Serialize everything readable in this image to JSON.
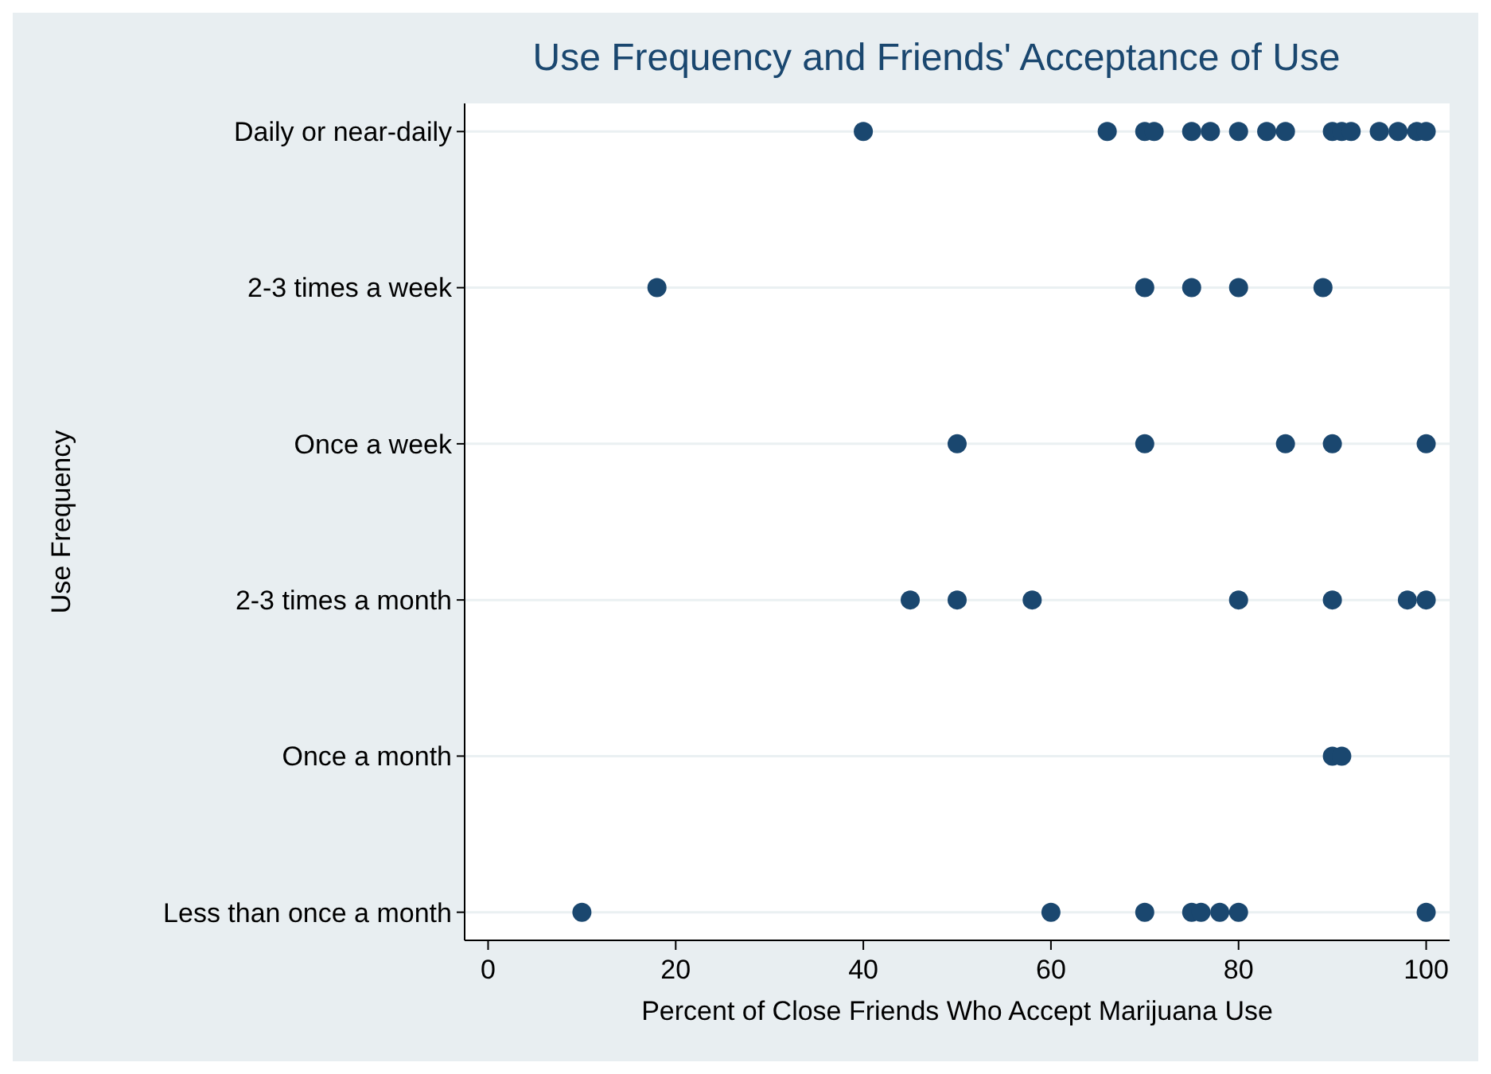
{
  "chart_data": {
    "type": "scatter",
    "title": "Use Frequency and Friends' Acceptance of Use",
    "xlabel": "Percent of Close Friends Who Accept Marijuana Use",
    "ylabel": "Use Frequency",
    "orientation": "horizontal",
    "categories": [
      "Daily or near-daily",
      "2-3 times a week",
      "Once a week",
      "2-3 times a month",
      "Once a month",
      "Less than once a month"
    ],
    "xlim": [
      -2.5,
      102.5
    ],
    "xticks": [
      0,
      20,
      40,
      60,
      80,
      100
    ],
    "grid": "y",
    "marker": "circle",
    "series": [
      {
        "color": "#1a476f",
        "values": [
          40,
          66,
          70,
          71,
          75,
          77,
          80,
          83,
          85,
          90,
          91,
          92,
          95,
          97,
          99,
          100,
          18,
          70,
          75,
          80,
          89,
          50,
          70,
          85,
          90,
          100,
          45,
          50,
          58,
          80,
          90,
          98,
          100,
          90,
          91,
          10,
          60,
          70,
          75,
          76,
          78,
          80,
          100
        ],
        "x": [
          "Daily or near-daily",
          "Daily or near-daily",
          "Daily or near-daily",
          "Daily or near-daily",
          "Daily or near-daily",
          "Daily or near-daily",
          "Daily or near-daily",
          "Daily or near-daily",
          "Daily or near-daily",
          "Daily or near-daily",
          "Daily or near-daily",
          "Daily or near-daily",
          "Daily or near-daily",
          "Daily or near-daily",
          "Daily or near-daily",
          "Daily or near-daily",
          "2-3 times a week",
          "2-3 times a week",
          "2-3 times a week",
          "2-3 times a week",
          "2-3 times a week",
          "Once a week",
          "Once a week",
          "Once a week",
          "Once a week",
          "Once a week",
          "2-3 times a month",
          "2-3 times a month",
          "2-3 times a month",
          "2-3 times a month",
          "2-3 times a month",
          "2-3 times a month",
          "2-3 times a month",
          "Once a month",
          "Once a month",
          "Less than once a month",
          "Less than once a month",
          "Less than once a month",
          "Less than once a month",
          "Less than once a month",
          "Less than once a month",
          "Less than once a month",
          "Less than once a month"
        ]
      }
    ]
  }
}
